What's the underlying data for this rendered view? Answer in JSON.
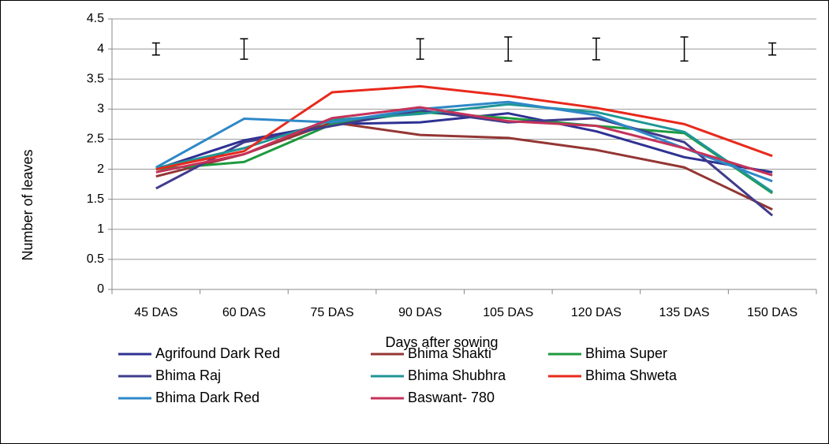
{
  "chart_data": {
    "type": "line",
    "x_label": "Days after sowing",
    "y_label": "Number of leaves",
    "categories": [
      "45 DAS",
      "60 DAS",
      "75 DAS",
      "90 DAS",
      "105 DAS",
      "120 DAS",
      "135 DAS",
      "150 DAS"
    ],
    "ylim": [
      0,
      4.5
    ],
    "yticks": [
      0,
      0.5,
      1,
      1.5,
      2,
      2.5,
      3,
      3.5,
      4,
      4.5
    ],
    "grid": true,
    "legend": "bottom",
    "series": [
      {
        "name": "Agrifound Dark Red",
        "color": "#2e3192",
        "values": [
          2.0,
          2.48,
          2.75,
          2.78,
          2.93,
          2.63,
          2.2,
          1.95
        ]
      },
      {
        "name": "Bhima Shakti",
        "color": "#943634",
        "values": [
          1.88,
          2.25,
          2.78,
          2.57,
          2.52,
          2.32,
          2.03,
          1.33
        ]
      },
      {
        "name": "Bhima Super",
        "color": "#1e9a3e",
        "values": [
          2.0,
          2.12,
          2.75,
          2.95,
          2.85,
          2.72,
          2.6,
          1.6
        ]
      },
      {
        "name": "Bhima Raj",
        "color": "#403c8c",
        "values": [
          1.68,
          2.45,
          2.72,
          2.98,
          2.78,
          2.85,
          2.45,
          1.23
        ]
      },
      {
        "name": "Bhima Shubhra",
        "color": "#1f9696",
        "values": [
          2.02,
          2.35,
          2.82,
          2.92,
          3.08,
          2.95,
          2.62,
          1.62
        ]
      },
      {
        "name": "Bhima Shweta",
        "color": "#e8291c",
        "values": [
          2.0,
          2.3,
          3.28,
          3.38,
          3.22,
          3.02,
          2.75,
          2.22
        ]
      },
      {
        "name": "Bhima Dark Red",
        "color": "#2e88c8",
        "values": [
          2.03,
          2.84,
          2.78,
          3.0,
          3.12,
          2.9,
          2.35,
          1.8
        ]
      },
      {
        "name": "Baswant- 780",
        "color": "#c5325a",
        "values": [
          1.95,
          2.25,
          2.85,
          3.03,
          2.8,
          2.72,
          2.35,
          1.9
        ]
      }
    ],
    "error_bars": {
      "values": [
        4,
        4,
        null,
        4,
        4,
        4,
        4,
        4
      ],
      "errors": [
        0.1,
        0.17,
        null,
        0.17,
        0.2,
        0.18,
        0.2,
        0.1
      ]
    }
  }
}
